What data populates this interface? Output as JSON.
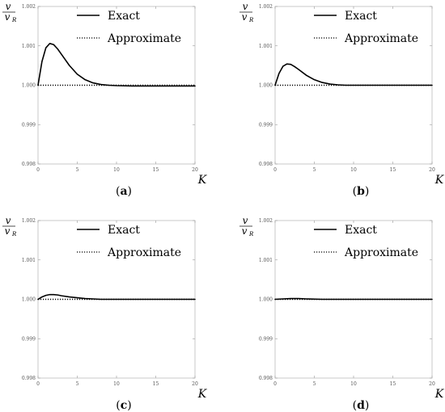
{
  "chart_data": [
    {
      "type": "line",
      "panel_label": "a",
      "ylabel_num": "v",
      "ylabel_den": "v",
      "ylabel_den_sub": "R",
      "xlabel": "K",
      "xlim": [
        0,
        20
      ],
      "ylim": [
        0.998,
        1.002
      ],
      "xticks": [
        "0",
        "5",
        "10",
        "15",
        "20"
      ],
      "yticks": [
        "0.998",
        "0.999",
        "1.000",
        "1.001",
        "1.002"
      ],
      "legend": "top-right",
      "grid": false,
      "series": [
        {
          "name": "Exact",
          "style": "solid",
          "x": [
            0,
            0.5,
            1,
            1.5,
            2,
            2.5,
            3,
            4,
            5,
            6,
            7,
            8,
            9,
            10,
            12,
            14,
            16,
            18,
            20
          ],
          "y": [
            1.0,
            1.0006,
            1.00095,
            1.00106,
            1.00103,
            1.00092,
            1.00078,
            1.0005,
            1.00028,
            1.00014,
            1.00006,
            1.00002,
            1.0,
            0.99999,
            0.99998,
            0.99998,
            0.99998,
            0.99998,
            0.99998
          ]
        },
        {
          "name": "Approximate",
          "style": "dotted",
          "x": [
            0,
            20
          ],
          "y": [
            1.0,
            1.0
          ]
        }
      ]
    },
    {
      "type": "line",
      "panel_label": "b",
      "ylabel_num": "v",
      "ylabel_den": "v",
      "ylabel_den_sub": "R",
      "xlabel": "K",
      "xlim": [
        0,
        20
      ],
      "ylim": [
        0.998,
        1.002
      ],
      "xticks": [
        "0",
        "5",
        "10",
        "15",
        "20"
      ],
      "yticks": [
        "0.998",
        "0.999",
        "1.000",
        "1.001",
        "1.002"
      ],
      "legend": "top-right",
      "grid": false,
      "series": [
        {
          "name": "Exact",
          "style": "solid",
          "x": [
            0,
            0.5,
            1,
            1.5,
            2,
            2.5,
            3,
            4,
            5,
            6,
            7,
            8,
            9,
            10,
            12,
            14,
            16,
            18,
            20
          ],
          "y": [
            1.0,
            1.0003,
            1.00048,
            1.00054,
            1.00053,
            1.00047,
            1.0004,
            1.00025,
            1.00014,
            1.00007,
            1.00003,
            1.00001,
            1.0,
            1.0,
            1.0,
            1.0,
            1.0,
            1.0,
            1.0
          ]
        },
        {
          "name": "Approximate",
          "style": "dotted",
          "x": [
            0,
            20
          ],
          "y": [
            1.0,
            1.0
          ]
        }
      ]
    },
    {
      "type": "line",
      "panel_label": "c",
      "ylabel_num": "v",
      "ylabel_den": "v",
      "ylabel_den_sub": "R",
      "xlabel": "K",
      "xlim": [
        0,
        20
      ],
      "ylim": [
        0.998,
        1.002
      ],
      "xticks": [
        "0",
        "5",
        "10",
        "15",
        "20"
      ],
      "yticks": [
        "0.998",
        "0.999",
        "1.000",
        "1.001",
        "1.002"
      ],
      "legend": "top-right",
      "grid": false,
      "series": [
        {
          "name": "Exact",
          "style": "solid",
          "x": [
            0,
            0.5,
            1,
            1.5,
            2,
            2.5,
            3,
            4,
            5,
            6,
            7,
            8,
            10,
            12,
            14,
            16,
            18,
            20
          ],
          "y": [
            1.0,
            1.00006,
            1.0001,
            1.00012,
            1.00012,
            1.00011,
            1.00009,
            1.00006,
            1.00004,
            1.00002,
            1.00001,
            1.0,
            1.0,
            1.0,
            1.0,
            1.0,
            1.0,
            1.0
          ]
        },
        {
          "name": "Approximate",
          "style": "dotted",
          "x": [
            0,
            20
          ],
          "y": [
            1.0,
            1.0
          ]
        }
      ]
    },
    {
      "type": "line",
      "panel_label": "d",
      "ylabel_num": "v",
      "ylabel_den": "v",
      "ylabel_den_sub": "R",
      "xlabel": "K",
      "xlim": [
        0,
        20
      ],
      "ylim": [
        0.998,
        1.002
      ],
      "xticks": [
        "0",
        "5",
        "10",
        "15",
        "20"
      ],
      "yticks": [
        "0.998",
        "0.999",
        "1.000",
        "1.001",
        "1.002"
      ],
      "legend": "top-right",
      "grid": false,
      "series": [
        {
          "name": "Exact",
          "style": "solid",
          "x": [
            0,
            1,
            2,
            3,
            4,
            6,
            8,
            10,
            15,
            20
          ],
          "y": [
            1.0,
            1.00001,
            1.00002,
            1.00002,
            1.00001,
            1.0,
            1.0,
            1.0,
            1.0,
            1.0
          ]
        },
        {
          "name": "Approximate",
          "style": "dotted",
          "x": [
            0,
            20
          ],
          "y": [
            1.0,
            1.0
          ]
        }
      ]
    }
  ]
}
